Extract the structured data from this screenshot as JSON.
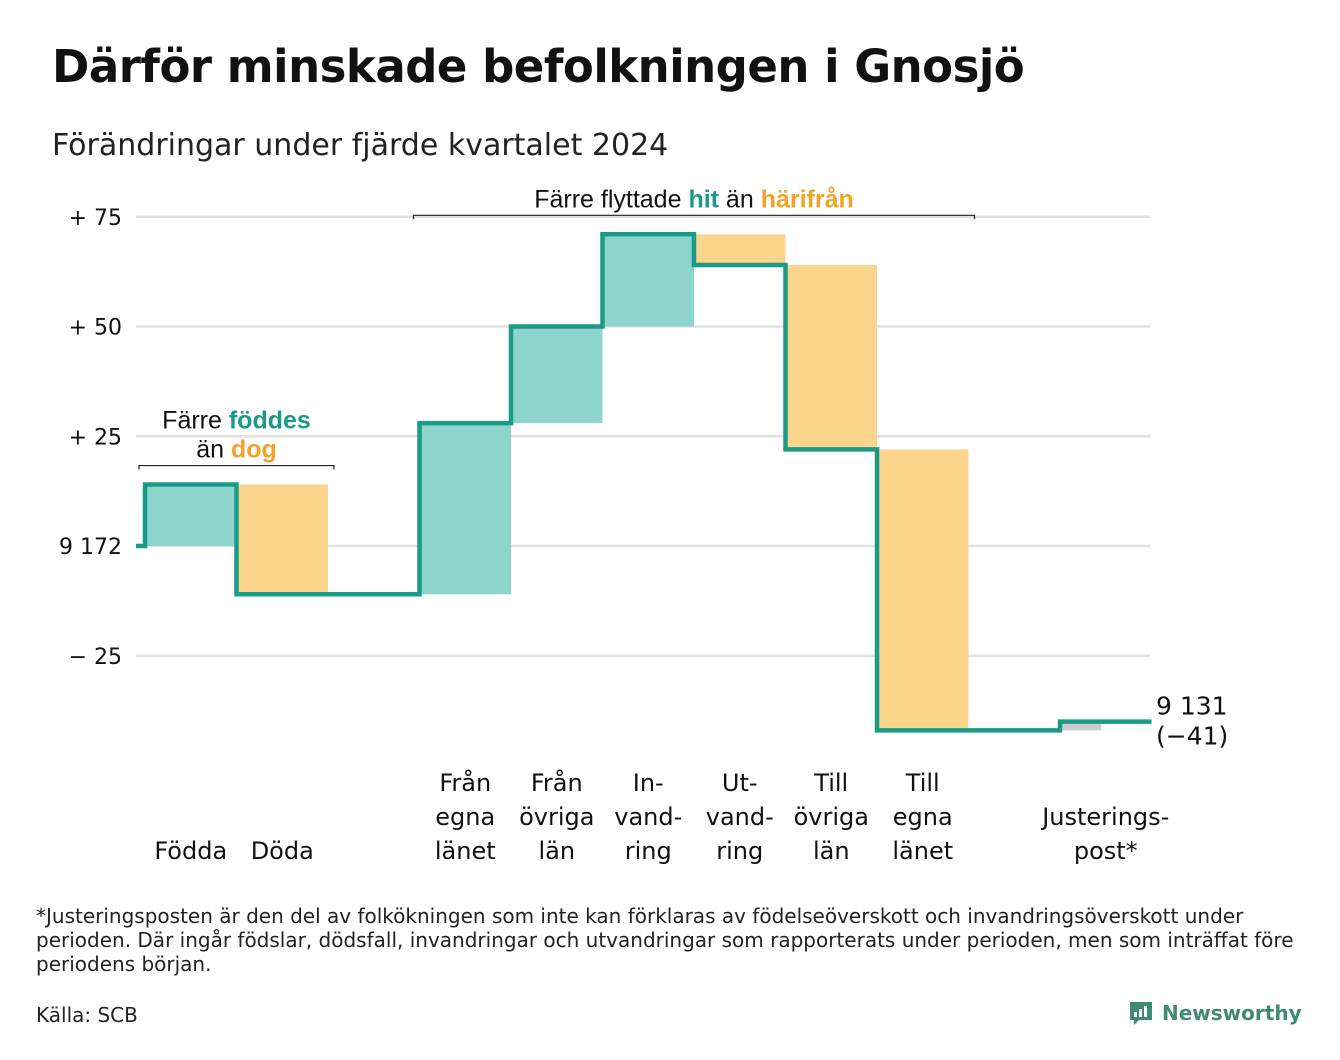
{
  "title": "Därför minskade befolkningen i Gnosjö",
  "subtitle": "Förändringar under fjärde kvartalet 2024",
  "footnote": "*Justeringsposten är den del av folkökningen som inte kan förklaras av födelseöverskott och invandringsöverskott under perioden. Där ingår födslar, dödsfall, invandringar och utvandringar som rapporterats under perioden, men som inträffat före periodens början.",
  "source": "Källa: SCB",
  "brand": {
    "name": "Newsworthy",
    "icon": "newsworthy-logo-icon"
  },
  "colors": {
    "increase": "#8dd5cc",
    "decrease": "#fad58b",
    "adjustment": "#cccccc",
    "line": "#1a9a88",
    "teal_text": "#1a9a88",
    "orange_text": "#f4a227",
    "grid": "#e1e1e1"
  },
  "annotations": [
    {
      "id": "births",
      "lines": [
        [
          "Färre ",
          "föddes"
        ],
        [
          "än ",
          "dog"
        ]
      ],
      "span": [
        "Födda",
        "Döda"
      ]
    },
    {
      "id": "migration",
      "lines": [
        [
          "Färre flyttade ",
          "hit",
          " än ",
          "härifrån"
        ]
      ],
      "span": [
        "Från egna länet",
        "Till egna länet"
      ]
    }
  ],
  "chart_data": {
    "type": "waterfall",
    "title": "Därför minskade befolkningen i Gnosjö",
    "subtitle": "Förändringar under fjärde kvartalet 2024",
    "start_value": 9172,
    "end_value": 9131,
    "net_change": -41,
    "end_label": [
      "9 131",
      "(−41)"
    ],
    "y_ticks": [
      {
        "value": 75,
        "label": "+ 75"
      },
      {
        "value": 50,
        "label": "+ 50"
      },
      {
        "value": 25,
        "label": "+ 25"
      },
      {
        "value": 0,
        "label": "9 172"
      },
      {
        "value": -25,
        "label": "− 25"
      }
    ],
    "ylim": [
      -32,
      78
    ],
    "grid": true,
    "categories": [
      {
        "label": [
          "Födda"
        ],
        "change": 14
      },
      {
        "label": [
          "Döda"
        ],
        "change": -25
      },
      {
        "label": [],
        "change": 0
      },
      {
        "label": [
          "Från",
          "egna",
          "länet"
        ],
        "change": 39
      },
      {
        "label": [
          "Från",
          "övriga",
          "län"
        ],
        "change": 22
      },
      {
        "label": [
          "In-",
          "vand-",
          "ring"
        ],
        "change": 21
      },
      {
        "label": [
          "Ut-",
          "vand-",
          "ring"
        ],
        "change": -7
      },
      {
        "label": [
          "Till",
          "övriga",
          "län"
        ],
        "change": -42
      },
      {
        "label": [
          "Till",
          "egna",
          "länet"
        ],
        "change": -64
      },
      {
        "label": [],
        "change": 0
      },
      {
        "label": [
          "Justerings-",
          "post*"
        ],
        "change": 2
      }
    ]
  }
}
